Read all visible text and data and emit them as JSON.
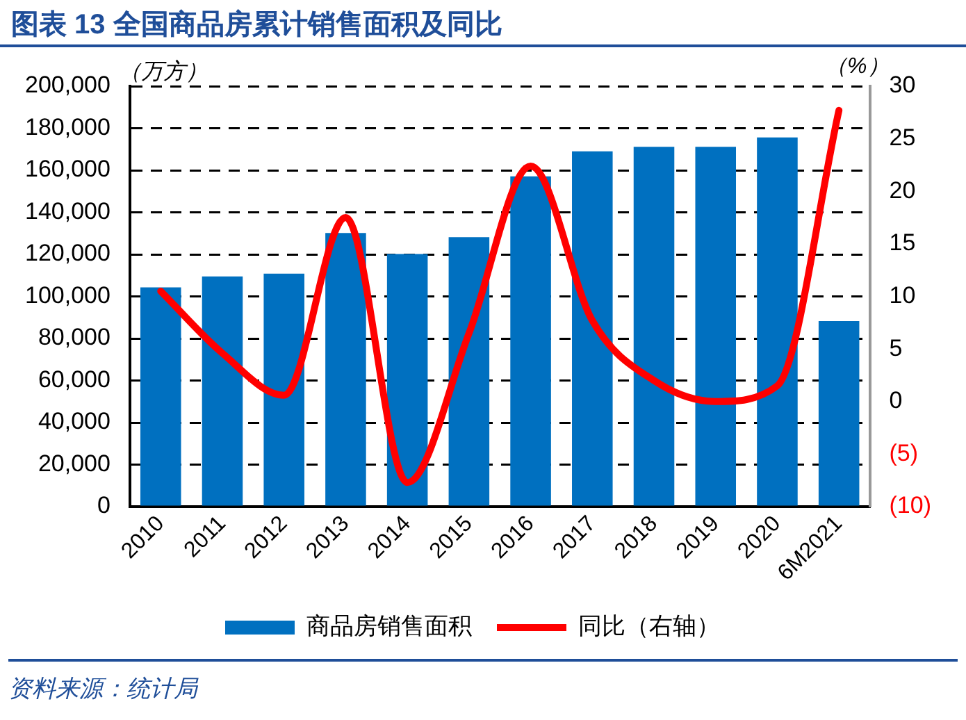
{
  "chart_data": {
    "type": "bar",
    "title": "图表 13  全国商品房累计销售面积及同比",
    "ylabel": "（万方）",
    "y2label": "（%）",
    "categories": [
      "2010",
      "2011",
      "2012",
      "2013",
      "2014",
      "2015",
      "2016",
      "2017",
      "2018",
      "2019",
      "2020",
      "6M2021"
    ],
    "series": [
      {
        "name": "商品房销售面积",
        "color": "#0070c0",
        "values": [
          104300,
          109500,
          110800,
          130200,
          120200,
          128200,
          157100,
          169000,
          171200,
          171200,
          175600,
          88300
        ]
      },
      {
        "name": "同比（右轴）",
        "type": "line",
        "axis": "y2",
        "color": "#ff0000",
        "values": [
          10.5,
          4.6,
          0.6,
          17.5,
          -7.7,
          6.5,
          22.4,
          7.7,
          2.0,
          0.0,
          1.5,
          27.7
        ]
      }
    ],
    "ylim": [
      0,
      200000
    ],
    "yticks": [
      {
        "value": 0,
        "label": "0"
      },
      {
        "value": 20000,
        "label": "20,000"
      },
      {
        "value": 40000,
        "label": "40,000"
      },
      {
        "value": 60000,
        "label": "60,000"
      },
      {
        "value": 80000,
        "label": "80,000"
      },
      {
        "value": 100000,
        "label": "100,000"
      },
      {
        "value": 120000,
        "label": "120,000"
      },
      {
        "value": 140000,
        "label": "140,000"
      },
      {
        "value": 160000,
        "label": "160,000"
      },
      {
        "value": 180000,
        "label": "180,000"
      },
      {
        "value": 200000,
        "label": "200,000"
      }
    ],
    "y2lim": [
      -10,
      30
    ],
    "y2ticks": [
      {
        "value": -10,
        "label": "(10)"
      },
      {
        "value": -5,
        "label": "(5)"
      },
      0,
      5,
      10,
      15,
      20,
      25,
      30
    ],
    "grid": "y",
    "legend": "bottom",
    "marker": "none",
    "line_style": "solid",
    "annotations": [
      "资料来源：统计局"
    ]
  }
}
